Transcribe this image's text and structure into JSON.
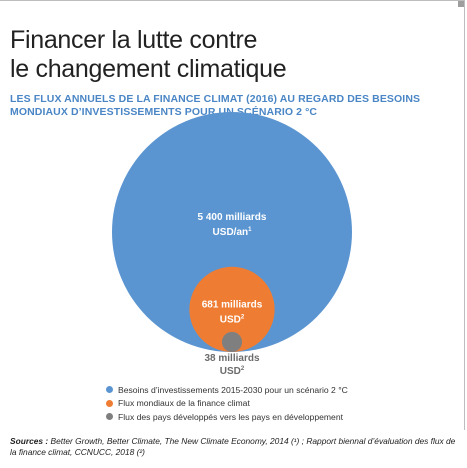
{
  "title_line1": "Financer la lutte contre",
  "title_line2": "le changement climatique",
  "subtitle_line1": "LES FLUX ANNUELS DE LA FINANCE CLIMAT (2016) AU REGARD DES BESOINS",
  "subtitle_line2": "MONDIAUX D’INVESTISSEMENTS POUR UN SCÉNARIO 2 °C",
  "colors": {
    "needs": "#5b95d1",
    "world_flows": "#ee7d33",
    "developed_flows": "#7f7f7f",
    "subtitle": "#4a86c5"
  },
  "chart_data": {
    "type": "bubble",
    "title": "LES FLUX ANNUELS DE LA FINANCE CLIMAT (2016) AU REGARD DES BESOINS MONDIAUX D’INVESTISSEMENTS POUR UN SCÉNARIO 2 °C",
    "unit": "milliards USD",
    "series": [
      {
        "name": "Besoins d’investissements 2015-2030 pour un scénario 2 °C",
        "value": 5400,
        "label_line1": "5 400 milliards",
        "label_line2": "USD/an",
        "sup": "1",
        "color": "#5b95d1"
      },
      {
        "name": "Flux mondiaux de la finance climat",
        "value": 681,
        "label_line1": "681 milliards",
        "label_line2": "USD",
        "sup": "2",
        "color": "#ee7d33"
      },
      {
        "name": "Flux des pays développés vers les pays en développement",
        "value": 38,
        "label_line1": "38 milliards",
        "label_line2": "USD",
        "sup": "2",
        "color": "#7f7f7f"
      }
    ]
  },
  "legend": [
    {
      "label": "Besoins d’investissements 2015-2030 pour un scénario 2 °C",
      "color": "#5b95d1"
    },
    {
      "label": "Flux mondiaux de la finance climat",
      "color": "#ee7d33"
    },
    {
      "label": "Flux des pays développés vers les pays en développement",
      "color": "#7f7f7f"
    }
  ],
  "sources": {
    "prefix": "Sources :",
    "text": " Better Growth, Better Climate, The New Climate Economy, 2014 (¹) ; Rapport biennal d’évaluation des flux de la finance climat, CCNUCC, 2018 (²)"
  }
}
